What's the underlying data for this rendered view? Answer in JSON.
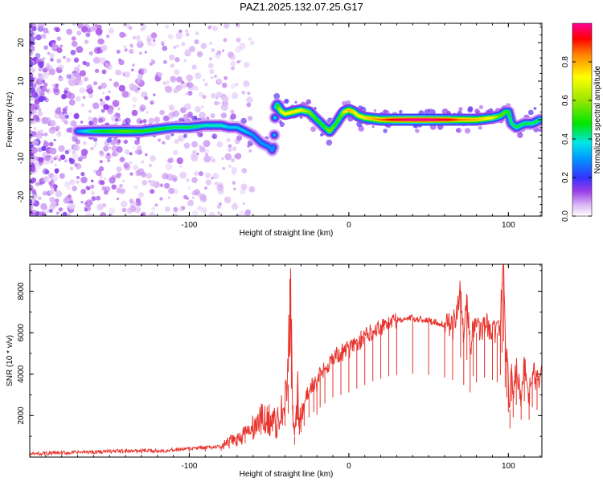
{
  "title": "PAZ1.2025.132.07.25.G17",
  "chart_data": [
    {
      "type": "heatmap",
      "title": "PAZ1.2025.132.07.25.G17",
      "xlabel": "Height of straight line (km)",
      "ylabel": "Frequency (Hz)",
      "colorbar_label": "Normalized spectral amplitude",
      "xlim": [
        -200,
        121
      ],
      "ylim": [
        -25,
        25
      ],
      "xticks": [
        -100,
        0,
        100
      ],
      "yticks": [
        -20,
        -10,
        0,
        10,
        20
      ],
      "colorbar_ticks": [
        0.0,
        0.2,
        0.4,
        0.6,
        0.8
      ],
      "colorbar_range": [
        0,
        1
      ],
      "ridge": {
        "x": [
          -170,
          -160,
          -150,
          -140,
          -130,
          -120,
          -110,
          -100,
          -90,
          -80,
          -75,
          -70,
          -65,
          -60,
          -55,
          -50,
          -48,
          -47,
          -46,
          -45,
          -44,
          -42,
          -40,
          -35,
          -30,
          -25,
          -20,
          -15,
          -12,
          -10,
          -8,
          -5,
          -3,
          0,
          3,
          6,
          10,
          20,
          30,
          40,
          50,
          60,
          70,
          80,
          90,
          95,
          98,
          100,
          102,
          105,
          110,
          115,
          120
        ],
        "y": [
          -3,
          -3,
          -3,
          -3,
          -3,
          -2.5,
          -2,
          -2,
          -1.5,
          -1.5,
          -2,
          -2,
          -3,
          -4,
          -6,
          -7,
          -8,
          -7,
          3,
          4,
          3,
          2,
          1.5,
          2,
          2.5,
          2,
          0,
          -2,
          -3,
          -2,
          -1,
          1,
          2,
          2.5,
          2,
          1,
          0.5,
          0,
          0,
          0,
          0,
          0,
          0,
          0,
          0.5,
          1,
          2,
          2,
          -1,
          -2,
          -1,
          -1,
          0
        ],
        "amplitude": [
          0.3,
          0.45,
          0.5,
          0.55,
          0.5,
          0.5,
          0.45,
          0.45,
          0.4,
          0.4,
          0.35,
          0.35,
          0.35,
          0.3,
          0.3,
          0.3,
          0.3,
          0.3,
          0.4,
          0.45,
          0.6,
          0.7,
          0.7,
          0.75,
          0.7,
          0.6,
          0.5,
          0.5,
          0.6,
          0.55,
          0.5,
          0.55,
          0.65,
          0.8,
          0.75,
          0.7,
          0.75,
          0.85,
          0.95,
          1.0,
          1.0,
          0.95,
          0.85,
          0.8,
          0.7,
          0.55,
          0.55,
          0.5,
          0.45,
          0.45,
          0.45,
          0.45,
          0.45
        ]
      }
    },
    {
      "type": "line",
      "xlabel": "Height of straight line (km)",
      "ylabel": "SNR (10 * v/v)",
      "xlim": [
        -200,
        121
      ],
      "ylim": [
        0,
        9300
      ],
      "xticks": [
        -100,
        0,
        100
      ],
      "yticks": [
        2000,
        4000,
        6000,
        8000
      ],
      "series": [
        {
          "color": "#e8322b",
          "x": [
            -200,
            -180,
            -160,
            -140,
            -120,
            -100,
            -90,
            -80,
            -75,
            -70,
            -65,
            -60,
            -55,
            -50,
            -45,
            -40,
            -38,
            -37,
            -36,
            -35,
            -34,
            -33,
            -32,
            -31,
            -30,
            -28,
            -25,
            -22,
            -20,
            -18,
            -15,
            -10,
            -5,
            0,
            5,
            10,
            15,
            20,
            25,
            30,
            40,
            50,
            60,
            65,
            70,
            72,
            74,
            76,
            78,
            80,
            85,
            90,
            93,
            95,
            96,
            97,
            98,
            99,
            100,
            101,
            102,
            103,
            105,
            108,
            110,
            113,
            115,
            118,
            121
          ],
          "y": [
            150,
            200,
            250,
            300,
            300,
            400,
            450,
            500,
            700,
            900,
            1100,
            1400,
            1800,
            1800,
            1600,
            2500,
            3500,
            8600,
            5500,
            2500,
            1000,
            2500,
            3000,
            1800,
            2000,
            2500,
            3200,
            3600,
            3400,
            4000,
            4300,
            4800,
            5000,
            5200,
            5500,
            5800,
            6100,
            6300,
            6500,
            6600,
            6700,
            6600,
            6400,
            6200,
            8000,
            5800,
            7800,
            5200,
            6500,
            6000,
            6400,
            6200,
            6000,
            6600,
            8400,
            9300,
            5600,
            4800,
            3600,
            2300,
            4500,
            3200,
            4200,
            3000,
            4500,
            3000,
            4000,
            3800,
            3900
          ]
        }
      ]
    }
  ]
}
